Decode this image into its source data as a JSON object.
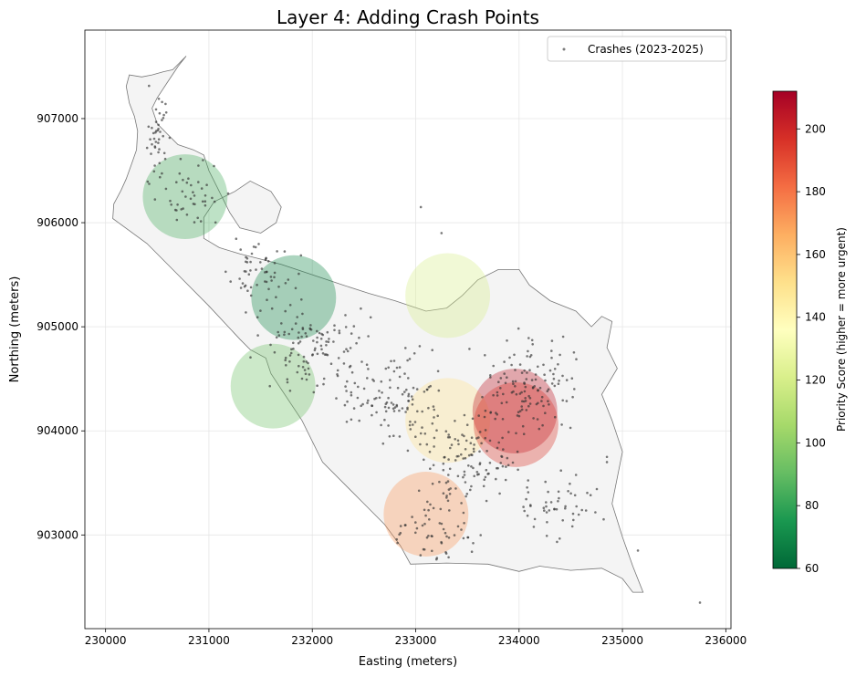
{
  "chart_data": {
    "type": "scatter",
    "title": "Layer 4: Adding Crash Points",
    "xlabel": "Easting (meters)",
    "ylabel": "Northing (meters)",
    "xlim": [
      229800,
      236050
    ],
    "ylim": [
      902100,
      907850
    ],
    "xticks": [
      230000,
      231000,
      232000,
      233000,
      234000,
      235000,
      236000
    ],
    "yticks": [
      903000,
      904000,
      905000,
      906000,
      907000
    ],
    "grid": true,
    "legend": {
      "placement": "top-right",
      "entries": [
        {
          "label": "Crashes (2023-2025)",
          "color": "#444444"
        }
      ]
    },
    "colorbar": {
      "label": "Priority Score (higher = more urgent)",
      "min": 60,
      "max": 212,
      "ticks": [
        60,
        80,
        100,
        120,
        140,
        160,
        180,
        200
      ],
      "colormap": "RdYlGn_r"
    },
    "boundary_polygon": [
      [
        230780,
        907600
      ],
      [
        230730,
        907550
      ],
      [
        230650,
        907470
      ],
      [
        230560,
        907450
      ],
      [
        230450,
        907420
      ],
      [
        230350,
        907400
      ],
      [
        230230,
        907420
      ],
      [
        230200,
        907310
      ],
      [
        230230,
        907150
      ],
      [
        230280,
        907020
      ],
      [
        230310,
        906880
      ],
      [
        230300,
        906700
      ],
      [
        230250,
        906560
      ],
      [
        230200,
        906420
      ],
      [
        230150,
        906310
      ],
      [
        230080,
        906180
      ],
      [
        230070,
        906040
      ],
      [
        230400,
        905800
      ],
      [
        230700,
        905500
      ],
      [
        231000,
        905200
      ],
      [
        231300,
        904880
      ],
      [
        231400,
        904780
      ],
      [
        231550,
        904700
      ],
      [
        231600,
        904550
      ],
      [
        231700,
        904400
      ],
      [
        231900,
        904100
      ],
      [
        232100,
        903700
      ],
      [
        232300,
        903500
      ],
      [
        232500,
        903300
      ],
      [
        232700,
        903100
      ],
      [
        232850,
        902900
      ],
      [
        232950,
        902720
      ],
      [
        233300,
        902730
      ],
      [
        233700,
        902720
      ],
      [
        234000,
        902650
      ],
      [
        234200,
        902700
      ],
      [
        234500,
        902660
      ],
      [
        234800,
        902680
      ],
      [
        235000,
        902580
      ],
      [
        235100,
        902450
      ],
      [
        235200,
        902450
      ],
      [
        235100,
        902700
      ],
      [
        235000,
        902980
      ],
      [
        234900,
        903300
      ],
      [
        234950,
        903550
      ],
      [
        235000,
        903800
      ],
      [
        234900,
        904100
      ],
      [
        234800,
        904350
      ],
      [
        234950,
        904600
      ],
      [
        234850,
        904800
      ],
      [
        234900,
        905050
      ],
      [
        234800,
        905100
      ],
      [
        234700,
        905000
      ],
      [
        234550,
        905150
      ],
      [
        234300,
        905250
      ],
      [
        234100,
        905400
      ],
      [
        234000,
        905550
      ],
      [
        233800,
        905550
      ],
      [
        233600,
        905450
      ],
      [
        233450,
        905300
      ],
      [
        233300,
        905180
      ],
      [
        233100,
        905150
      ],
      [
        232800,
        905250
      ],
      [
        232550,
        905320
      ],
      [
        232300,
        905400
      ],
      [
        232000,
        905500
      ],
      [
        231700,
        905600
      ],
      [
        231500,
        905650
      ],
      [
        231300,
        905700
      ],
      [
        231100,
        905760
      ],
      [
        230950,
        905850
      ],
      [
        230950,
        906050
      ],
      [
        231050,
        906200
      ],
      [
        231250,
        906300
      ],
      [
        231400,
        906400
      ],
      [
        231600,
        906300
      ],
      [
        231700,
        906150
      ],
      [
        231650,
        906000
      ],
      [
        231500,
        905900
      ],
      [
        231300,
        905950
      ],
      [
        231200,
        906100
      ],
      [
        231100,
        906300
      ],
      [
        231000,
        906500
      ],
      [
        230950,
        906650
      ],
      [
        230850,
        906700
      ],
      [
        230700,
        906750
      ],
      [
        230600,
        906850
      ],
      [
        230500,
        906950
      ],
      [
        230450,
        907100
      ],
      [
        230500,
        907200
      ],
      [
        230600,
        907350
      ],
      [
        230700,
        907500
      ],
      [
        230780,
        907600
      ]
    ],
    "priority_zones": [
      {
        "x": 230770,
        "y": 906250,
        "radius": 410,
        "score": 84
      },
      {
        "x": 231820,
        "y": 905280,
        "radius": 410,
        "score": 70
      },
      {
        "x": 231620,
        "y": 904430,
        "radius": 410,
        "score": 92
      },
      {
        "x": 233310,
        "y": 905300,
        "radius": 410,
        "score": 120
      },
      {
        "x": 233310,
        "y": 904100,
        "radius": 410,
        "score": 150
      },
      {
        "x": 233960,
        "y": 904190,
        "radius": 410,
        "score": 205
      },
      {
        "x": 233970,
        "y": 904060,
        "radius": 410,
        "score": 195
      },
      {
        "x": 233100,
        "y": 903200,
        "radius": 410,
        "score": 172
      }
    ],
    "crash_clusters": [
      {
        "x": 230500,
        "y": 906800,
        "sx": 150,
        "sy": 400,
        "n": 40
      },
      {
        "x": 230800,
        "y": 906300,
        "sx": 250,
        "sy": 250,
        "n": 45
      },
      {
        "x": 231500,
        "y": 905500,
        "sx": 300,
        "sy": 250,
        "n": 60
      },
      {
        "x": 232000,
        "y": 904800,
        "sx": 400,
        "sy": 350,
        "n": 110
      },
      {
        "x": 232800,
        "y": 904300,
        "sx": 400,
        "sy": 400,
        "n": 120
      },
      {
        "x": 233500,
        "y": 903700,
        "sx": 400,
        "sy": 350,
        "n": 110
      },
      {
        "x": 234100,
        "y": 904400,
        "sx": 400,
        "sy": 400,
        "n": 130
      },
      {
        "x": 234400,
        "y": 903300,
        "sx": 300,
        "sy": 250,
        "n": 50
      },
      {
        "x": 233200,
        "y": 903100,
        "sx": 300,
        "sy": 300,
        "n": 60
      }
    ],
    "outlier_crashes": [
      {
        "x": 233050,
        "y": 906150
      },
      {
        "x": 233250,
        "y": 905900
      },
      {
        "x": 235750,
        "y": 902350
      },
      {
        "x": 235150,
        "y": 902850
      },
      {
        "x": 234850,
        "y": 903750
      },
      {
        "x": 234850,
        "y": 903700
      }
    ]
  }
}
